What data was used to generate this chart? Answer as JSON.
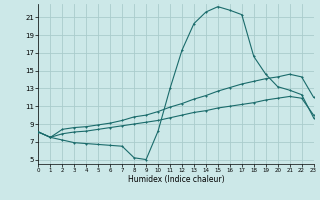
{
  "background_color": "#cce8e8",
  "grid_color": "#aacccc",
  "line_color": "#1a6b6b",
  "xlim": [
    0,
    23
  ],
  "ylim": [
    4.5,
    22.5
  ],
  "xticks": [
    0,
    1,
    2,
    3,
    4,
    5,
    6,
    7,
    8,
    9,
    10,
    11,
    12,
    13,
    14,
    15,
    16,
    17,
    18,
    19,
    20,
    21,
    22,
    23
  ],
  "yticks": [
    5,
    7,
    9,
    11,
    13,
    15,
    17,
    19,
    21
  ],
  "xlabel": "Humidex (Indice chaleur)",
  "line1_x": [
    0,
    1,
    2,
    3,
    4,
    5,
    6,
    7,
    8,
    9,
    10,
    11,
    12,
    13,
    14,
    15,
    16,
    17,
    18,
    19,
    20,
    21,
    22,
    23
  ],
  "line1_y": [
    8.1,
    7.5,
    7.2,
    6.9,
    6.8,
    6.7,
    6.6,
    6.5,
    5.2,
    5.0,
    8.2,
    13.0,
    17.3,
    20.3,
    21.6,
    22.2,
    21.8,
    21.3,
    16.6,
    14.6,
    13.2,
    12.8,
    12.3,
    9.7
  ],
  "line2_x": [
    0,
    1,
    2,
    3,
    4,
    5,
    6,
    7,
    8,
    9,
    10,
    11,
    12,
    13,
    14,
    15,
    16,
    17,
    18,
    19,
    20,
    21,
    22,
    23
  ],
  "line2_y": [
    8.1,
    7.5,
    8.4,
    8.6,
    8.7,
    8.9,
    9.1,
    9.4,
    9.8,
    10.0,
    10.4,
    10.9,
    11.3,
    11.8,
    12.2,
    12.7,
    13.1,
    13.5,
    13.8,
    14.1,
    14.3,
    14.6,
    14.3,
    12.0
  ],
  "line3_x": [
    0,
    1,
    2,
    3,
    4,
    5,
    6,
    7,
    8,
    9,
    10,
    11,
    12,
    13,
    14,
    15,
    16,
    17,
    18,
    19,
    20,
    21,
    22,
    23
  ],
  "line3_y": [
    8.1,
    7.5,
    7.9,
    8.1,
    8.2,
    8.4,
    8.6,
    8.8,
    9.0,
    9.2,
    9.4,
    9.7,
    10.0,
    10.3,
    10.5,
    10.8,
    11.0,
    11.2,
    11.4,
    11.7,
    11.9,
    12.1,
    11.9,
    10.0
  ]
}
